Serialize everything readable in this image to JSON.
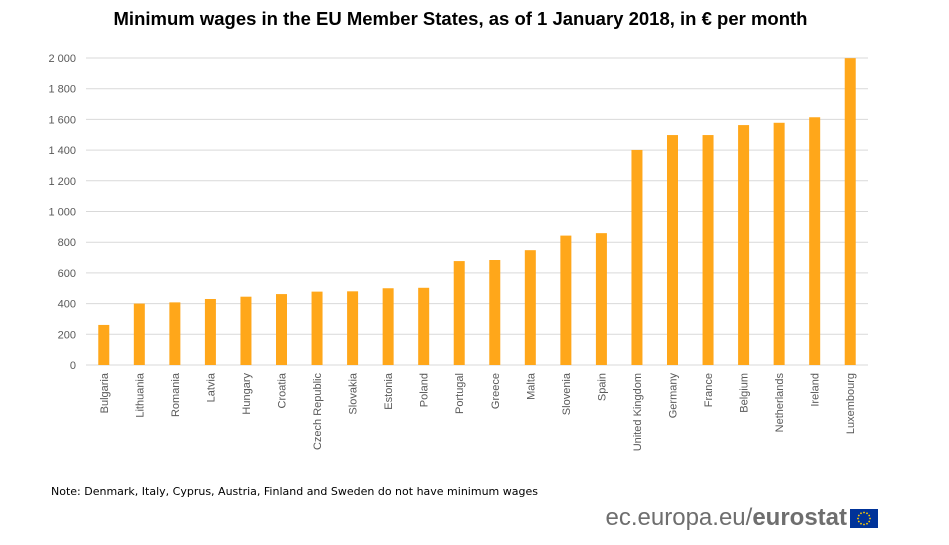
{
  "chart_data": {
    "type": "bar",
    "title": "Minimum  wages in the EU Member States, as of 1 January 2018, in € per month",
    "xlabel": "",
    "ylabel": "",
    "ylim": [
      0,
      2000
    ],
    "yticks": [
      0,
      200,
      400,
      600,
      800,
      1000,
      1200,
      1400,
      1600,
      1800,
      2000
    ],
    "ytick_labels": [
      "0",
      "200",
      "400",
      "600",
      "800",
      "1 000",
      "1 200",
      "1 400",
      "1 600",
      "1 800",
      "2 000"
    ],
    "grid": true,
    "legend": "none",
    "bar_color": "#FFA71A",
    "categories": [
      "Bulgaria",
      "Lithuania",
      "Romania",
      "Latvia",
      "Hungary",
      "Croatia",
      "Czech Republic",
      "Slovakia",
      "Estonia",
      "Poland",
      "Portugal",
      "Greece",
      "Malta",
      "Slovenia",
      "Spain",
      "United Kingdom",
      "Germany",
      "France",
      "Belgium",
      "Netherlands",
      "Ireland",
      "Luxembourg"
    ],
    "values": [
      261,
      400,
      408,
      430,
      445,
      462,
      478,
      480,
      500,
      503,
      677,
      684,
      748,
      843,
      859,
      1401,
      1498,
      1498,
      1563,
      1578,
      1614,
      1999
    ]
  },
  "note": "Note:  Denmark,  Italy, Cyprus, Austria, Finland and Sweden do not have minimum wages",
  "brand": {
    "domain": "ec.europa.eu/",
    "name": "eurostat"
  },
  "colors": {
    "bar": "#FFA71A",
    "grid": "#d9d9d9",
    "axis_text": "#595959",
    "flag_blue": "#003399",
    "flag_stars": "#FFCC00"
  }
}
